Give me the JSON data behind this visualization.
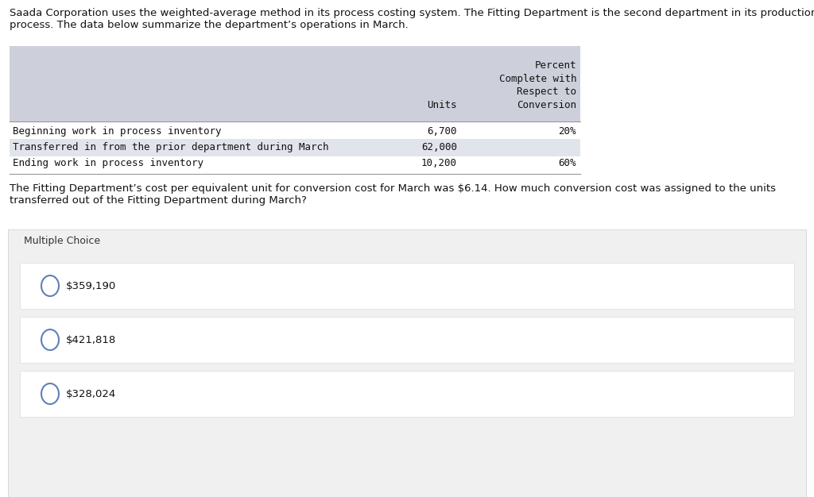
{
  "title_text": "Saada Corporation uses the weighted-average method in its process costing system. The Fitting Department is the second department in its production\nprocess. The data below summarize the department’s operations in March.",
  "table_rows": [
    {
      "label": "Beginning work in process inventory",
      "units": "6,700",
      "pct": "20%"
    },
    {
      "label": "Transferred in from the prior department during March",
      "units": "62,000",
      "pct": ""
    },
    {
      "label": "Ending work in process inventory",
      "units": "10,200",
      "pct": "60%"
    }
  ],
  "question_text": "The Fitting Department’s cost per equivalent unit for conversion cost for March was $6.14. How much conversion cost was assigned to the units\ntransferred out of the Fitting Department during March?",
  "multiple_choice_label": "Multiple Choice",
  "choices": [
    "$359,190",
    "$421,818",
    "$328,024"
  ],
  "white": "#ffffff",
  "table_header_bg": "#cdd0da",
  "table_row2_bg": "#e2e4ec",
  "mc_section_bg": "#f0f0f0",
  "mc_gap_bg": "#f0f0f0",
  "choice_box_bg": "#ffffff",
  "circle_color": "#6080b8",
  "text_dark": "#111111",
  "text_mid": "#333333"
}
